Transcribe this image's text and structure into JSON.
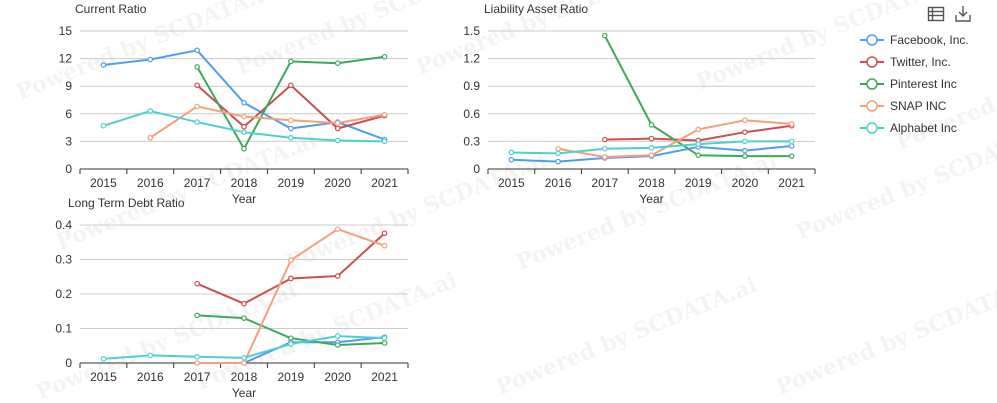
{
  "toolbox": {
    "icons": [
      "data-view-icon",
      "download-icon"
    ]
  },
  "watermark": {
    "text": "Powered by SCDATA.ai"
  },
  "legend": {
    "items": [
      {
        "label": "Facebook, Inc.",
        "color": "#4e9ef0"
      },
      {
        "label": "Twitter, Inc.",
        "color": "#c9504f"
      },
      {
        "label": "Pinterest Inc",
        "color": "#3fa85c"
      },
      {
        "label": "SNAP INC",
        "color": "#f5a07a"
      },
      {
        "label": "Alphabet Inc",
        "color": "#4fd0d0"
      }
    ]
  },
  "chart_data": [
    {
      "type": "line",
      "title": "Current Ratio",
      "xlabel": "Year",
      "ylabel": "",
      "x": [
        "2015",
        "2016",
        "2017",
        "2018",
        "2019",
        "2020",
        "2021"
      ],
      "ylim": [
        0,
        15
      ],
      "yticks": [
        "0",
        "3",
        "6",
        "9",
        "12",
        "15"
      ],
      "grid": true,
      "series": [
        {
          "name": "Facebook, Inc.",
          "values": [
            11.3,
            11.9,
            12.9,
            7.2,
            4.4,
            5.1,
            3.2
          ]
        },
        {
          "name": "Twitter, Inc.",
          "values": [
            null,
            null,
            9.1,
            4.6,
            9.1,
            4.4,
            5.8
          ]
        },
        {
          "name": "Pinterest Inc",
          "values": [
            null,
            null,
            11.1,
            2.2,
            11.7,
            11.5,
            12.2
          ]
        },
        {
          "name": "SNAP INC",
          "values": [
            null,
            3.4,
            6.8,
            5.7,
            5.3,
            5.0,
            5.9
          ]
        },
        {
          "name": "Alphabet Inc",
          "values": [
            4.7,
            6.3,
            5.1,
            4.0,
            3.4,
            3.1,
            3.0
          ]
        }
      ]
    },
    {
      "type": "line",
      "title": "Liability Asset Ratio",
      "xlabel": "Year",
      "ylabel": "",
      "x": [
        "2015",
        "2016",
        "2017",
        "2018",
        "2019",
        "2020",
        "2021"
      ],
      "ylim": [
        0,
        1.5
      ],
      "yticks": [
        "0",
        "0.3",
        "0.6",
        "0.9",
        "1.2",
        "1.5"
      ],
      "grid": true,
      "series": [
        {
          "name": "Facebook, Inc.",
          "values": [
            0.1,
            0.08,
            0.12,
            0.14,
            0.24,
            0.2,
            0.25
          ]
        },
        {
          "name": "Twitter, Inc.",
          "values": [
            null,
            null,
            0.32,
            0.33,
            0.31,
            0.4,
            0.47
          ]
        },
        {
          "name": "Pinterest Inc",
          "values": [
            null,
            null,
            1.45,
            0.48,
            0.15,
            0.14,
            0.14
          ]
        },
        {
          "name": "SNAP INC",
          "values": [
            null,
            0.22,
            0.13,
            0.15,
            0.43,
            0.53,
            0.49
          ]
        },
        {
          "name": "Alphabet Inc",
          "values": [
            0.18,
            0.17,
            0.22,
            0.23,
            0.27,
            0.3,
            0.3
          ]
        }
      ]
    },
    {
      "type": "line",
      "title": "Long Term Debt Ratio",
      "xlabel": "Year",
      "ylabel": "",
      "x": [
        "2015",
        "2016",
        "2017",
        "2018",
        "2019",
        "2020",
        "2021"
      ],
      "ylim": [
        0,
        0.4
      ],
      "yticks": [
        "0",
        "0.1",
        "0.2",
        "0.3",
        "0.4"
      ],
      "grid": true,
      "series": [
        {
          "name": "Facebook, Inc.",
          "values": [
            null,
            null,
            null,
            0.0,
            0.06,
            0.06,
            0.075
          ]
        },
        {
          "name": "Twitter, Inc.",
          "values": [
            null,
            null,
            0.23,
            0.172,
            0.245,
            0.252,
            0.376
          ]
        },
        {
          "name": "Pinterest Inc",
          "values": [
            null,
            null,
            0.138,
            0.13,
            0.072,
            0.052,
            0.058
          ]
        },
        {
          "name": "SNAP INC",
          "values": [
            null,
            null,
            0.0,
            0.0,
            0.298,
            0.388,
            0.34
          ]
        },
        {
          "name": "Alphabet Inc",
          "values": [
            0.012,
            0.022,
            0.018,
            0.015,
            0.055,
            0.078,
            0.072
          ]
        }
      ]
    }
  ]
}
